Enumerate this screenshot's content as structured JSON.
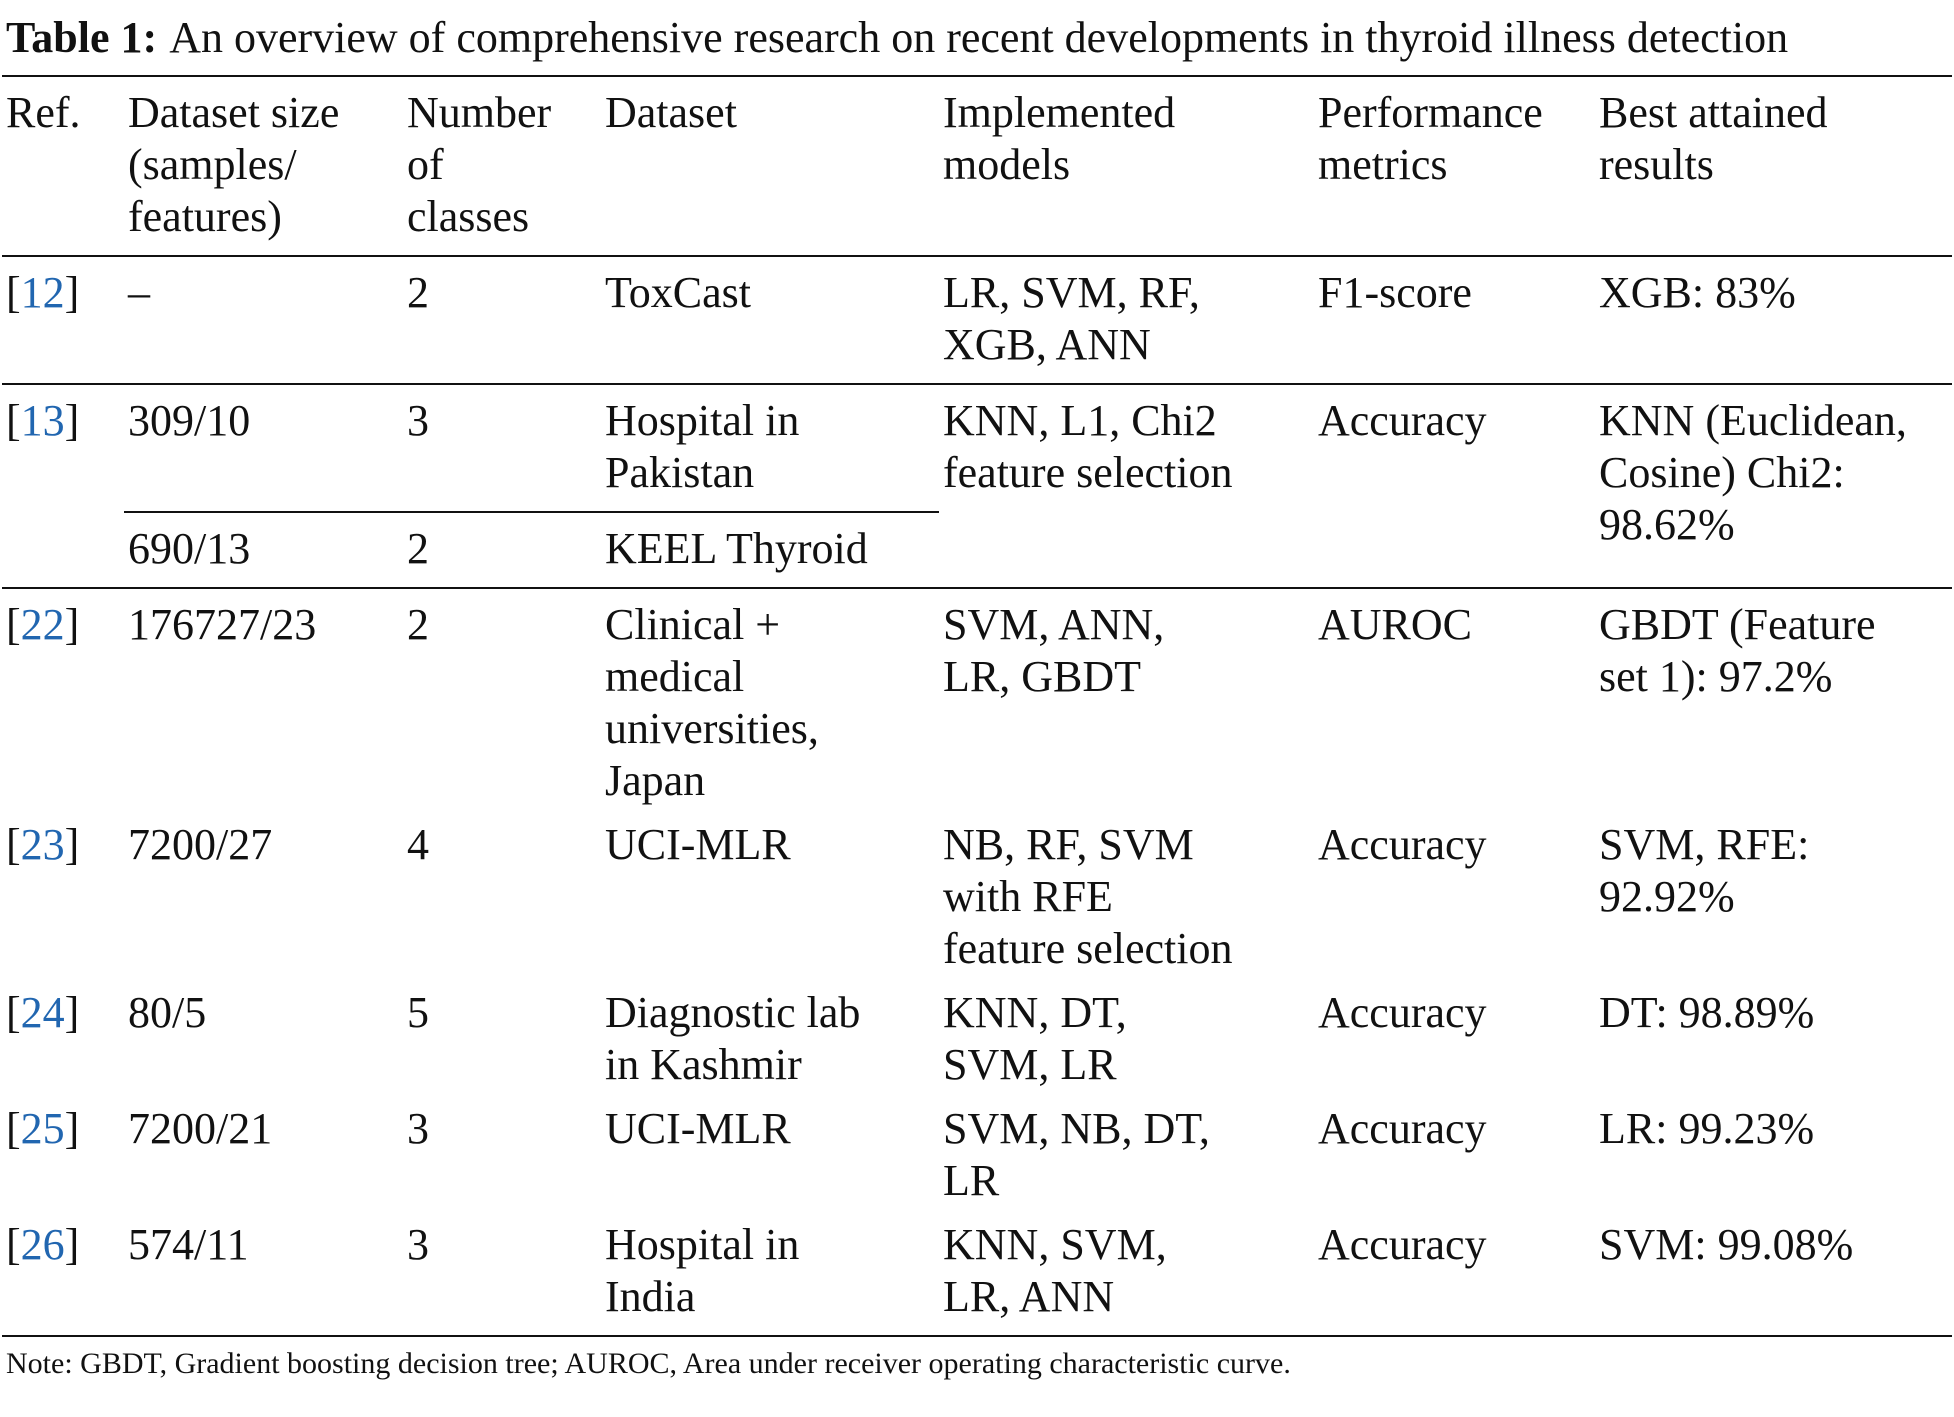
{
  "caption": {
    "label": "Table 1:",
    "text": "An overview of comprehensive research on recent developments in thyroid illness detection"
  },
  "table": {
    "headers": [
      [
        "Ref."
      ],
      [
        "Dataset size",
        "(samples/",
        "features)"
      ],
      [
        "Number",
        "of",
        "classes"
      ],
      [
        "Dataset"
      ],
      [
        "Implemented",
        "models"
      ],
      [
        "Performance",
        "metrics"
      ],
      [
        "Best attained",
        "results"
      ]
    ],
    "rows": [
      {
        "ref": {
          "open": "[",
          "link": "12",
          "close": "]"
        },
        "sources": [
          {
            "size": "–",
            "classes": 2,
            "dataset": [
              "ToxCast"
            ]
          }
        ],
        "models": [
          "LR, SVM, RF,",
          "XGB, ANN"
        ],
        "metrics": [
          "F1-score"
        ],
        "results": [
          "XGB: 83%"
        ]
      },
      {
        "ref": {
          "open": "[",
          "link": "13",
          "close": "]"
        },
        "sources": [
          {
            "size": "309/10",
            "classes": 3,
            "dataset": [
              "Hospital in",
              "Pakistan"
            ]
          },
          {
            "size": "690/13",
            "classes": 2,
            "dataset": [
              "KEEL Thyroid"
            ]
          }
        ],
        "models": [
          "KNN, L1, Chi2",
          "feature selection"
        ],
        "metrics": [
          "Accuracy"
        ],
        "results": [
          "KNN (Euclidean,",
          "Cosine) Chi2:",
          "98.62%"
        ]
      },
      {
        "ref": {
          "open": "[",
          "link": "22",
          "close": "]"
        },
        "sources": [
          {
            "size": "176727/23",
            "classes": 2,
            "dataset": [
              "Clinical +",
              "medical",
              "universities,",
              "Japan"
            ]
          }
        ],
        "models": [
          "SVM, ANN,",
          "LR, GBDT"
        ],
        "metrics": [
          "AUROC"
        ],
        "results": [
          "GBDT (Feature",
          "set 1): 97.2%"
        ]
      },
      {
        "ref": {
          "open": "[",
          "link": "23",
          "close": "]"
        },
        "sources": [
          {
            "size": "7200/27",
            "classes": 4,
            "dataset": [
              "UCI-MLR"
            ]
          }
        ],
        "models": [
          "NB, RF, SVM",
          "with RFE",
          "feature selection"
        ],
        "metrics": [
          "Accuracy"
        ],
        "results": [
          "SVM, RFE:",
          "92.92%"
        ]
      },
      {
        "ref": {
          "open": "[",
          "link": "24",
          "close": "]"
        },
        "sources": [
          {
            "size": "80/5",
            "classes": 5,
            "dataset": [
              "Diagnostic lab",
              "in Kashmir"
            ]
          }
        ],
        "models": [
          "KNN, DT,",
          "SVM, LR"
        ],
        "metrics": [
          "Accuracy"
        ],
        "results": [
          "DT: 98.89%"
        ]
      },
      {
        "ref": {
          "open": "[",
          "link": "25",
          "close": "]"
        },
        "sources": [
          {
            "size": "7200/21",
            "classes": 3,
            "dataset": [
              "UCI-MLR"
            ]
          }
        ],
        "models": [
          "SVM, NB, DT,",
          "LR"
        ],
        "metrics": [
          "Accuracy"
        ],
        "results": [
          "LR: 99.23%"
        ]
      },
      {
        "ref": {
          "open": "[",
          "link": "26",
          "close": "]"
        },
        "sources": [
          {
            "size": "574/11",
            "classes": 3,
            "dataset": [
              "Hospital in",
              "India"
            ]
          }
        ],
        "models": [
          "KNN, SVM,",
          "LR, ANN"
        ],
        "metrics": [
          "Accuracy"
        ],
        "results": [
          "SVM: 99.08%"
        ]
      }
    ]
  },
  "note": "Note: GBDT, Gradient boosting decision tree; AUROC, Area under receiver operating characteristic curve."
}
